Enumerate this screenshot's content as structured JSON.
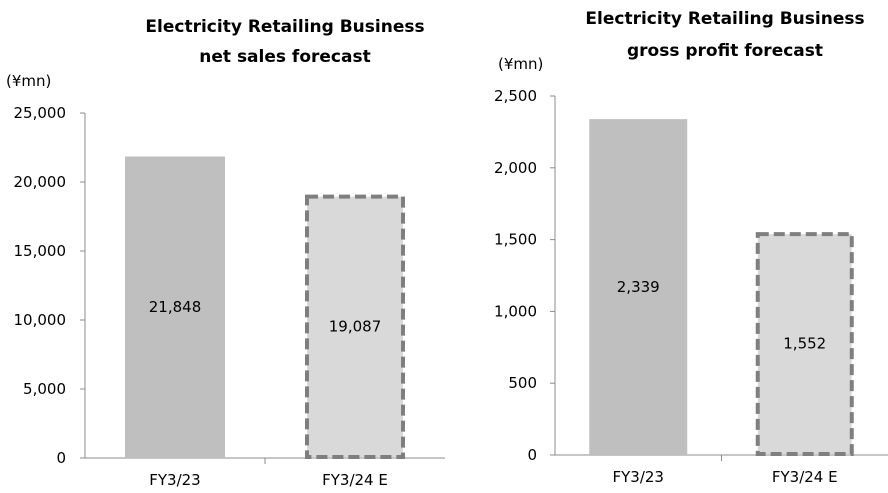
{
  "chart_data": [
    {
      "type": "bar",
      "title_lines": [
        "Electricity  Retailing Business",
        "net sales forecast"
      ],
      "unit": "(¥mn)",
      "categories": [
        "FY3/23",
        "FY3/24 E"
      ],
      "values": [
        21848,
        19087
      ],
      "data_labels": [
        "21,848",
        "19,087"
      ],
      "forecast": [
        false,
        true
      ],
      "ylim": [
        0,
        25000
      ],
      "yticks": [
        0,
        5000,
        10000,
        15000,
        20000,
        25000
      ],
      "ytick_labels": [
        "0",
        "5,000",
        "10,000",
        "15,000",
        "20,000",
        "25,000"
      ],
      "grid": false,
      "colors": {
        "actual": "#bfbfbf",
        "forecast_fill": "#d9d9d9",
        "forecast_border": "#7f7f7f"
      }
    },
    {
      "type": "bar",
      "title_lines": [
        "Electricity Retailing Business",
        "gross profit forecast"
      ],
      "unit": "(¥mn)",
      "categories": [
        "FY3/23",
        "FY3/24 E"
      ],
      "values": [
        2339,
        1552
      ],
      "data_labels": [
        "2,339",
        "1,552"
      ],
      "forecast": [
        false,
        true
      ],
      "ylim": [
        0,
        2500
      ],
      "yticks": [
        0,
        500,
        1000,
        1500,
        2000,
        2500
      ],
      "ytick_labels": [
        "0",
        "500",
        "1,000",
        "1,500",
        "2,000",
        "2,500"
      ],
      "grid": false,
      "colors": {
        "actual": "#bfbfbf",
        "forecast_fill": "#d9d9d9",
        "forecast_border": "#7f7f7f"
      }
    }
  ]
}
